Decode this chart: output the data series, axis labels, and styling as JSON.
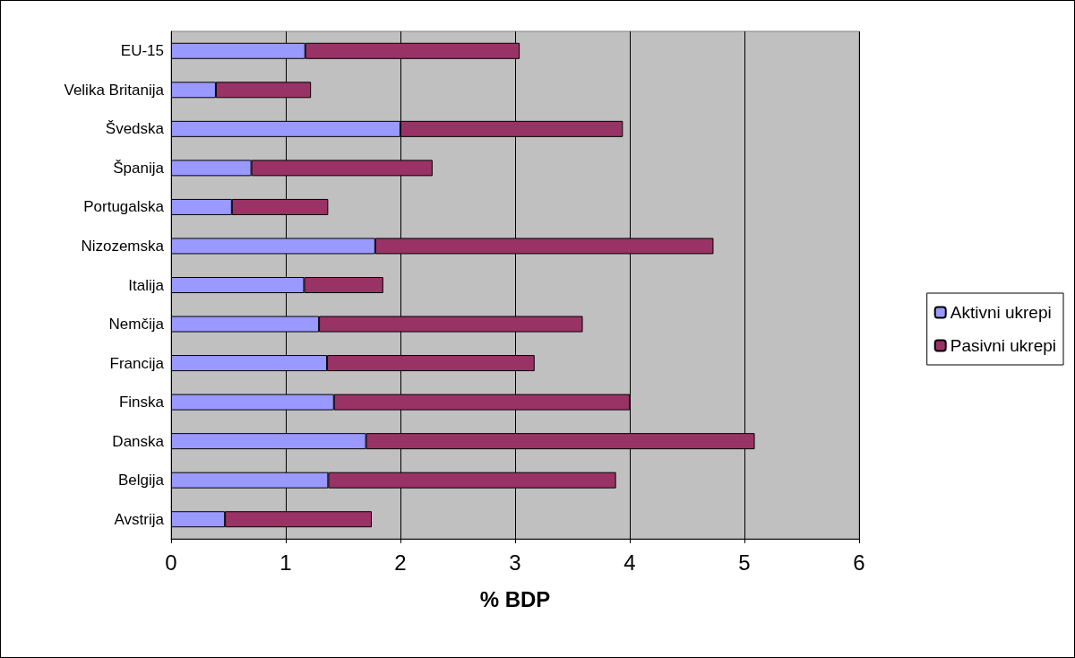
{
  "chart_data": {
    "type": "bar",
    "orientation": "horizontal",
    "stacked": true,
    "xlabel": "% BDP",
    "categories": [
      "EU-15",
      "Velika Britanija",
      "Švedska",
      "Španija",
      "Portugalska",
      "Nizozemska",
      "Italija",
      "Nemčija",
      "Francija",
      "Finska",
      "Danska",
      "Belgija",
      "Avstrija"
    ],
    "series": [
      {
        "name": "Aktivni ukrepi",
        "color": "#9999ff",
        "values": [
          1.17,
          0.39,
          2.0,
          0.7,
          0.53,
          1.78,
          1.16,
          1.29,
          1.36,
          1.42,
          1.7,
          1.37,
          0.47
        ]
      },
      {
        "name": "Pasivni ukrepi",
        "color": "#993366",
        "values": [
          1.87,
          0.83,
          1.94,
          1.58,
          0.84,
          2.95,
          0.69,
          2.3,
          1.81,
          2.58,
          3.39,
          2.51,
          1.28
        ]
      }
    ],
    "xlim": [
      0,
      6
    ],
    "xticks": [
      0,
      1,
      2,
      3,
      4,
      5,
      6
    ],
    "grid": "x",
    "legend": "right"
  }
}
